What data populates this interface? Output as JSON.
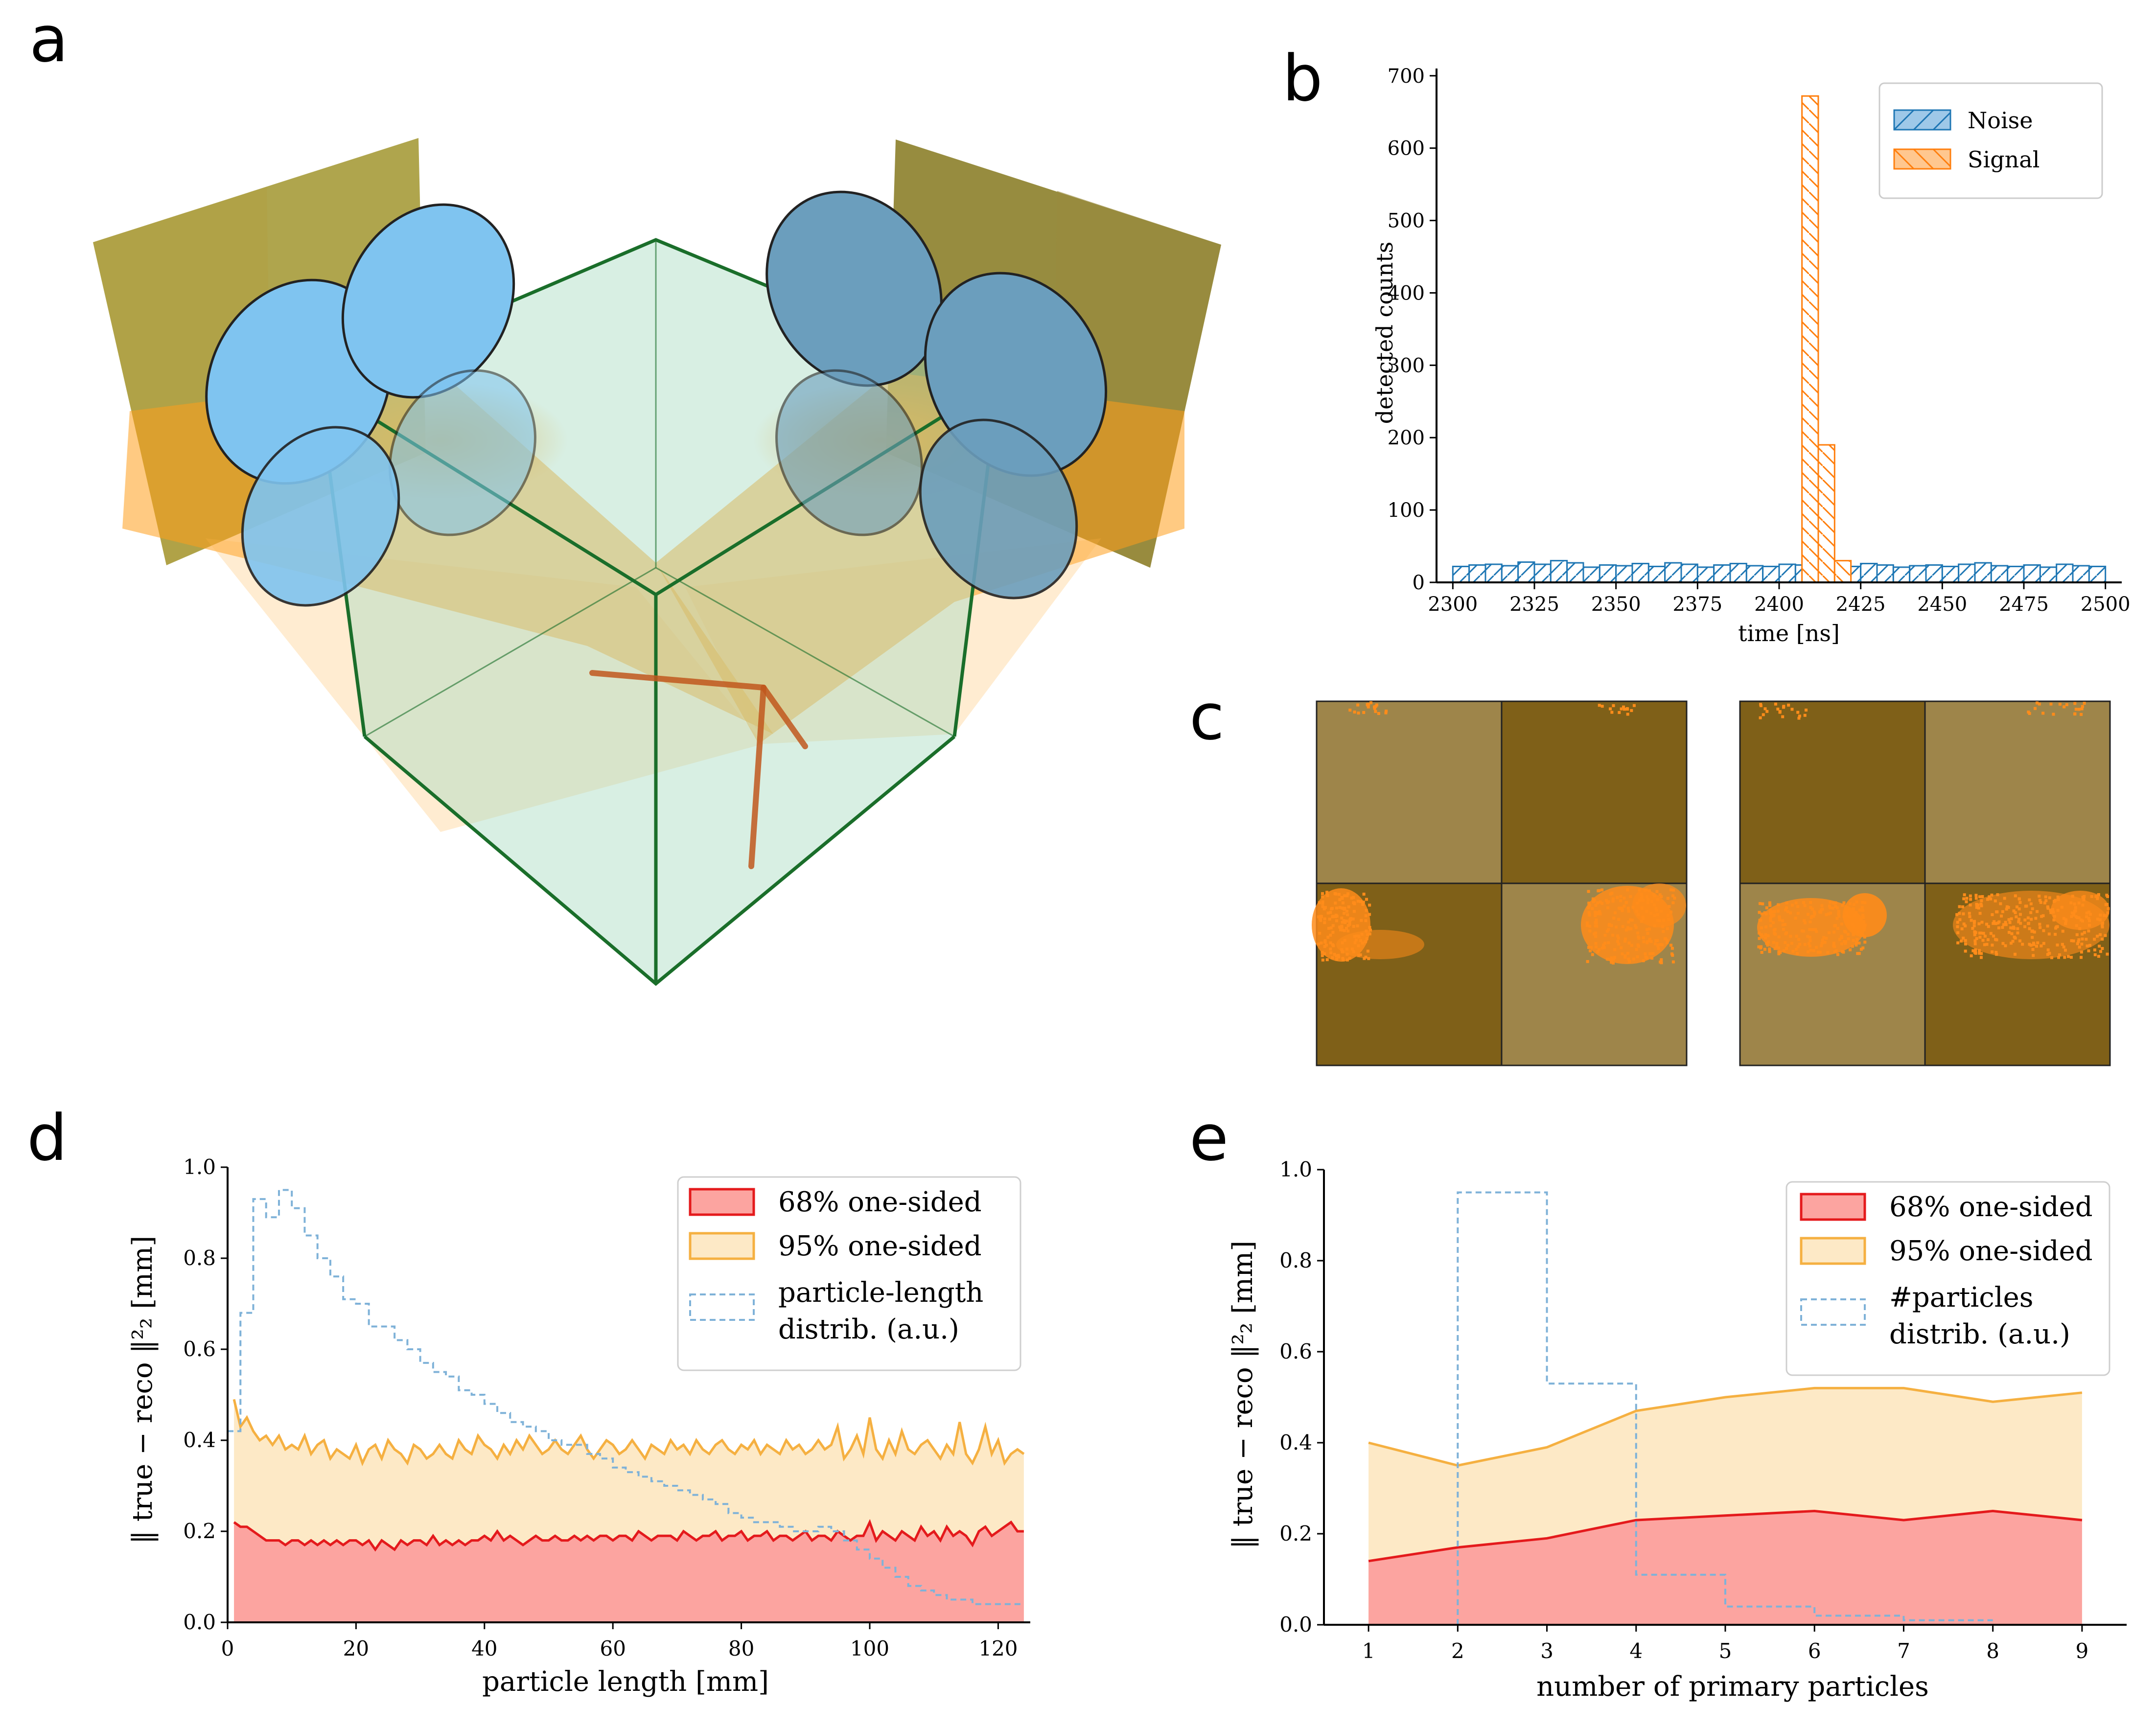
{
  "panels": {
    "a": "a",
    "b": "b",
    "c": "c",
    "d": "d",
    "e": "e"
  },
  "colors": {
    "noise": "#1f77b4",
    "signal": "#ff7f0e",
    "red": "#e41a1c",
    "orange": "#f5b041",
    "dist": "#7fb2d8",
    "cube": "#1a6e2a",
    "sensor_dark": "#7f6018",
    "sensor_light": "#9e854a",
    "lens": "#7fc4f0",
    "photon": "#ff9f1c"
  },
  "chart_data": [
    {
      "id": "b",
      "type": "histogram",
      "xlabel": "time [ns]",
      "ylabel": "detected counts",
      "xlim": [
        2295,
        2505
      ],
      "ylim": [
        0,
        710
      ],
      "xticks": [
        "2300",
        "2325",
        "2350",
        "2375",
        "2400",
        "2425",
        "2450",
        "2475",
        "2500"
      ],
      "yticks": [
        "0",
        "100",
        "200",
        "300",
        "400",
        "500",
        "600",
        "700"
      ],
      "legend": [
        "Noise",
        "Signal"
      ],
      "legend_position": "top-right",
      "bin_width": 5,
      "noise_start": 2300,
      "noise": [
        22,
        24,
        25,
        23,
        28,
        25,
        30,
        27,
        21,
        24,
        23,
        26,
        22,
        27,
        25,
        21,
        24,
        26,
        23,
        22,
        25,
        24,
        27,
        23,
        22,
        26,
        24,
        21,
        23,
        24,
        22,
        25,
        27,
        23,
        22,
        24,
        21,
        25,
        23,
        22
      ],
      "signal_start": 2407,
      "signal": [
        672,
        190,
        30
      ]
    },
    {
      "id": "d",
      "type": "area",
      "xlabel": "particle length [mm]",
      "ylabel": "‖ true − reco ‖²₂ [mm]",
      "xlim": [
        0,
        125
      ],
      "ylim": [
        0,
        1.0
      ],
      "xticks": [
        "0",
        "20",
        "40",
        "60",
        "80",
        "100",
        "120"
      ],
      "yticks": [
        "0.0",
        "0.2",
        "0.4",
        "0.6",
        "0.8",
        "1.0"
      ],
      "legend": [
        "68% one-sided",
        "95% one-sided",
        "particle-length",
        "distrib. (a.u.)"
      ],
      "legend_position": "top-right",
      "x_start": 1,
      "x_step": 1,
      "p95": [
        0.49,
        0.43,
        0.45,
        0.42,
        0.4,
        0.41,
        0.39,
        0.41,
        0.38,
        0.39,
        0.38,
        0.41,
        0.37,
        0.39,
        0.4,
        0.36,
        0.38,
        0.37,
        0.36,
        0.39,
        0.35,
        0.38,
        0.39,
        0.36,
        0.4,
        0.38,
        0.37,
        0.35,
        0.39,
        0.38,
        0.36,
        0.37,
        0.39,
        0.37,
        0.36,
        0.4,
        0.38,
        0.37,
        0.41,
        0.39,
        0.38,
        0.36,
        0.39,
        0.37,
        0.4,
        0.38,
        0.41,
        0.39,
        0.37,
        0.38,
        0.4,
        0.38,
        0.37,
        0.39,
        0.41,
        0.38,
        0.36,
        0.38,
        0.4,
        0.39,
        0.37,
        0.38,
        0.4,
        0.38,
        0.36,
        0.39,
        0.38,
        0.37,
        0.4,
        0.38,
        0.39,
        0.37,
        0.4,
        0.38,
        0.37,
        0.39,
        0.4,
        0.38,
        0.37,
        0.39,
        0.38,
        0.4,
        0.37,
        0.39,
        0.38,
        0.37,
        0.4,
        0.38,
        0.39,
        0.37,
        0.38,
        0.4,
        0.38,
        0.39,
        0.43,
        0.36,
        0.38,
        0.41,
        0.37,
        0.45,
        0.38,
        0.36,
        0.4,
        0.37,
        0.42,
        0.38,
        0.37,
        0.39,
        0.4,
        0.38,
        0.36,
        0.39,
        0.37,
        0.44,
        0.37,
        0.35,
        0.38,
        0.43,
        0.37,
        0.4,
        0.35,
        0.37,
        0.38,
        0.37
      ],
      "p68": [
        0.22,
        0.21,
        0.21,
        0.2,
        0.19,
        0.18,
        0.18,
        0.18,
        0.17,
        0.18,
        0.18,
        0.17,
        0.18,
        0.17,
        0.18,
        0.17,
        0.18,
        0.17,
        0.18,
        0.18,
        0.17,
        0.18,
        0.16,
        0.18,
        0.17,
        0.16,
        0.18,
        0.17,
        0.18,
        0.18,
        0.17,
        0.19,
        0.17,
        0.18,
        0.17,
        0.18,
        0.17,
        0.18,
        0.18,
        0.19,
        0.18,
        0.2,
        0.18,
        0.19,
        0.18,
        0.17,
        0.18,
        0.19,
        0.18,
        0.18,
        0.19,
        0.18,
        0.18,
        0.19,
        0.18,
        0.19,
        0.18,
        0.19,
        0.19,
        0.18,
        0.19,
        0.19,
        0.18,
        0.2,
        0.19,
        0.18,
        0.19,
        0.19,
        0.19,
        0.18,
        0.2,
        0.19,
        0.18,
        0.19,
        0.19,
        0.2,
        0.18,
        0.19,
        0.19,
        0.2,
        0.18,
        0.19,
        0.19,
        0.2,
        0.18,
        0.19,
        0.19,
        0.18,
        0.19,
        0.2,
        0.18,
        0.19,
        0.19,
        0.18,
        0.2,
        0.19,
        0.18,
        0.19,
        0.19,
        0.22,
        0.18,
        0.2,
        0.19,
        0.18,
        0.2,
        0.19,
        0.18,
        0.21,
        0.19,
        0.2,
        0.18,
        0.21,
        0.19,
        0.2,
        0.19,
        0.17,
        0.2,
        0.21,
        0.19,
        0.2,
        0.21,
        0.22,
        0.2,
        0.2
      ],
      "dist_start": 0,
      "dist_step": 2,
      "dist": [
        0.42,
        0.68,
        0.93,
        0.89,
        0.95,
        0.91,
        0.85,
        0.8,
        0.76,
        0.71,
        0.7,
        0.65,
        0.65,
        0.62,
        0.6,
        0.57,
        0.55,
        0.54,
        0.51,
        0.5,
        0.48,
        0.46,
        0.44,
        0.43,
        0.42,
        0.4,
        0.39,
        0.39,
        0.37,
        0.36,
        0.34,
        0.33,
        0.32,
        0.31,
        0.3,
        0.29,
        0.28,
        0.27,
        0.26,
        0.24,
        0.23,
        0.22,
        0.22,
        0.21,
        0.2,
        0.2,
        0.21,
        0.2,
        0.18,
        0.16,
        0.14,
        0.12,
        0.1,
        0.08,
        0.07,
        0.06,
        0.05,
        0.05,
        0.04,
        0.04,
        0.04,
        0.04
      ]
    },
    {
      "id": "e",
      "type": "area",
      "xlabel": "number of primary particles",
      "ylabel": "‖ true − reco ‖²₂ [mm]",
      "xlim": [
        0.5,
        9.5
      ],
      "ylim": [
        0,
        1.0
      ],
      "xticks": [
        "1",
        "2",
        "3",
        "4",
        "5",
        "6",
        "7",
        "8",
        "9"
      ],
      "yticks": [
        "0.0",
        "0.2",
        "0.4",
        "0.6",
        "0.8",
        "1.0"
      ],
      "legend": [
        "68% one-sided",
        "95% one-sided",
        "#particles",
        "distrib. (a.u.)"
      ],
      "legend_position": "top-right",
      "x": [
        1,
        2,
        3,
        4,
        5,
        6,
        7,
        8,
        9
      ],
      "p95": [
        0.4,
        0.35,
        0.39,
        0.47,
        0.5,
        0.52,
        0.52,
        0.49,
        0.51
      ],
      "p68": [
        0.14,
        0.17,
        0.19,
        0.23,
        0.24,
        0.25,
        0.23,
        0.25,
        0.23
      ],
      "dist_edges": [
        2,
        3,
        4,
        5,
        6,
        7,
        8
      ],
      "dist": [
        0.95,
        0.53,
        0.11,
        0.04,
        0.02,
        0.01
      ]
    }
  ]
}
